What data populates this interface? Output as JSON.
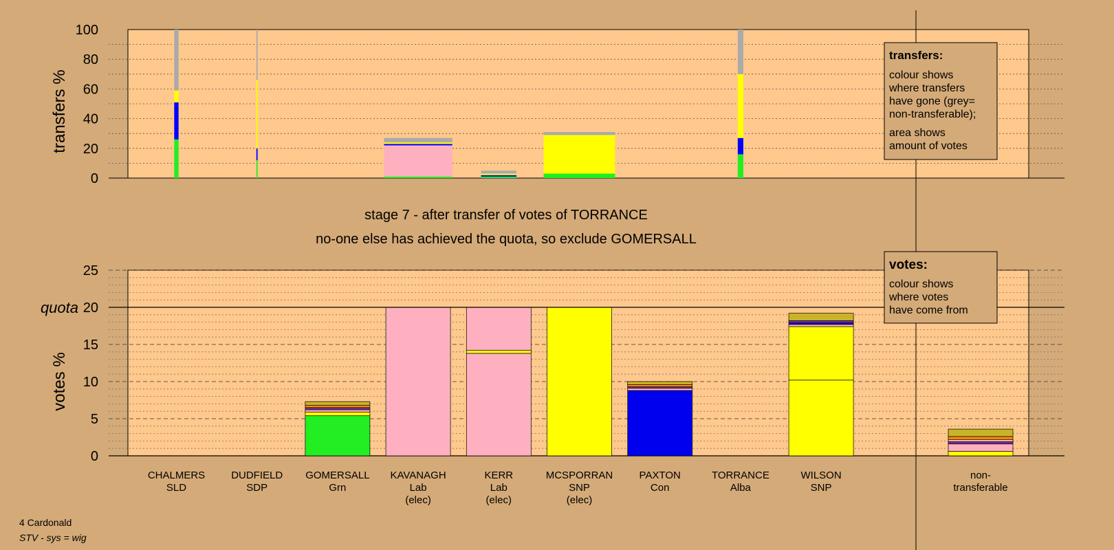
{
  "footer": {
    "line1": "4 Cardonald",
    "line2": "STV - sys = wig"
  },
  "stage": {
    "line1": "stage 7 - after transfer of votes of TORRANCE",
    "line2": "no-one else has achieved the quota, so exclude GOMERSALL"
  },
  "legend_transfers": {
    "title": "transfers:",
    "lines1": [
      "colour shows",
      "where transfers",
      "have gone (grey=",
      "non-transferable);"
    ],
    "lines2": [
      "area shows",
      "amount of votes"
    ]
  },
  "legend_votes": {
    "title": "votes:",
    "lines": [
      "colour shows",
      "where votes",
      "have come from"
    ]
  },
  "colors": {
    "page_bg": "#d4aa78",
    "plot_bg": "#ffc88c",
    "SLD": "#ffff00",
    "SDP": "#0000ff",
    "Grn": "#22ee22",
    "Lab": "#ffb0c0",
    "SNP": "#ffff00",
    "Con": "#0000ee",
    "Alba": "#c8b428",
    "nontransferable": "#aaaaaa",
    "purple": "#7a2ea0",
    "orange": "#ff8c00"
  },
  "chart_data": [
    {
      "type": "bar",
      "name": "transfers",
      "ylabel": "transfers %",
      "ylim": [
        0,
        100
      ],
      "yticks": [
        0,
        20,
        40,
        60,
        80,
        100
      ],
      "columns": [
        {
          "index": 0,
          "width": 0.07,
          "segments": [
            {
              "color": "#22ee22",
              "value": 26
            },
            {
              "color": "#0000ff",
              "value": 25
            },
            {
              "color": "#ffff00",
              "value": 8
            },
            {
              "color": "#aaaaaa",
              "value": 41
            }
          ]
        },
        {
          "index": 1,
          "width": 0.02,
          "segments": [
            {
              "color": "#22ee22",
              "value": 12
            },
            {
              "color": "#0000ff",
              "value": 8
            },
            {
              "color": "#ffff00",
              "value": 46
            },
            {
              "color": "#aaaaaa",
              "value": 34
            }
          ]
        },
        {
          "index": 3,
          "width": 1.1,
          "segments": [
            {
              "color": "#22ee22",
              "value": 1
            },
            {
              "color": "#ffb0c0",
              "value": 21
            },
            {
              "color": "#0000ff",
              "value": 1
            },
            {
              "color": "#ffff00",
              "value": 1
            },
            {
              "color": "#aaaaaa",
              "value": 3
            }
          ]
        },
        {
          "index": 4,
          "width": 0.57,
          "segments": [
            {
              "color": "#22ee22",
              "value": 1
            },
            {
              "color": "#0000ff",
              "value": 1
            },
            {
              "color": "#ffff00",
              "value": 1
            },
            {
              "color": "#aaaaaa",
              "value": 2
            }
          ]
        },
        {
          "index": 5,
          "width": 1.15,
          "segments": [
            {
              "color": "#22ee22",
              "value": 3
            },
            {
              "color": "#ffff00",
              "value": 26
            },
            {
              "color": "#aaaaaa",
              "value": 2
            }
          ]
        },
        {
          "index": 7,
          "width": 0.09,
          "segments": [
            {
              "color": "#22ee22",
              "value": 16
            },
            {
              "color": "#0000ff",
              "value": 11
            },
            {
              "color": "#ffff00",
              "value": 43
            },
            {
              "color": "#aaaaaa",
              "value": 30
            }
          ]
        }
      ]
    },
    {
      "type": "bar",
      "name": "votes",
      "ylabel": "votes %",
      "ylim": [
        0,
        25
      ],
      "yticks": [
        0,
        5,
        10,
        15,
        20,
        25
      ],
      "quota": 20,
      "quota_label": "quota",
      "categories": [
        {
          "name": "CHALMERS",
          "party": "SLD",
          "note": ""
        },
        {
          "name": "DUDFIELD",
          "party": "SDP",
          "note": ""
        },
        {
          "name": "GOMERSALL",
          "party": "Grn",
          "note": ""
        },
        {
          "name": "KAVANAGH",
          "party": "Lab",
          "note": "(elec)"
        },
        {
          "name": "KERR",
          "party": "Lab",
          "note": "(elec)"
        },
        {
          "name": "MCSPORRAN",
          "party": "SNP",
          "note": "(elec)"
        },
        {
          "name": "PAXTON",
          "party": "Con",
          "note": ""
        },
        {
          "name": "TORRANCE",
          "party": "Alba",
          "note": ""
        },
        {
          "name": "WILSON",
          "party": "SNP",
          "note": ""
        },
        {
          "name": "non-",
          "party": "transferable",
          "note": ""
        }
      ],
      "bars": [
        {
          "index": 0,
          "segments": []
        },
        {
          "index": 1,
          "segments": []
        },
        {
          "index": 2,
          "segments": [
            {
              "color": "#22ee22",
              "value": 5.4
            },
            {
              "color": "#ffff00",
              "value": 0.5
            },
            {
              "color": "#ffb0c0",
              "value": 0.3
            },
            {
              "color": "#7a2ea0",
              "value": 0.3
            },
            {
              "color": "#ff8c00",
              "value": 0.3
            },
            {
              "color": "#c8b428",
              "value": 0.5
            }
          ]
        },
        {
          "index": 3,
          "segments": [
            {
              "color": "#ffb0c0",
              "value": 20
            }
          ]
        },
        {
          "index": 4,
          "segments": [
            {
              "color": "#ffb0c0",
              "value": 13.8
            },
            {
              "color": "#ffff00",
              "value": 0.4
            },
            {
              "color": "#ffb0c0",
              "value": 5.8
            }
          ]
        },
        {
          "index": 5,
          "segments": [
            {
              "color": "#ffff00",
              "value": 20
            }
          ]
        },
        {
          "index": 6,
          "segments": [
            {
              "color": "#0000ee",
              "value": 8.8
            },
            {
              "color": "#ffb0c0",
              "value": 0.3
            },
            {
              "color": "#7a2ea0",
              "value": 0.2
            },
            {
              "color": "#ff8c00",
              "value": 0.3
            },
            {
              "color": "#c8b428",
              "value": 0.4
            }
          ]
        },
        {
          "index": 7,
          "segments": []
        },
        {
          "index": 8,
          "segments": [
            {
              "color": "#ffff00",
              "value": 10.2
            },
            {
              "color": "#ffff00",
              "value": 7.2
            },
            {
              "color": "#ffb0c0",
              "value": 0.3
            },
            {
              "color": "#0000ee",
              "value": 0.2
            },
            {
              "color": "#7a2ea0",
              "value": 0.3
            },
            {
              "color": "#c8b428",
              "value": 1.0
            }
          ]
        },
        {
          "index": 9,
          "segments": [
            {
              "color": "#ffff00",
              "value": 0.6
            },
            {
              "color": "#ffb0c0",
              "value": 1.0
            },
            {
              "color": "#7a2ea0",
              "value": 0.3
            },
            {
              "color": "#ffb0c0",
              "value": 0.3
            },
            {
              "color": "#ff8c00",
              "value": 0.4
            },
            {
              "color": "#c8b428",
              "value": 1.0
            }
          ]
        }
      ]
    }
  ]
}
